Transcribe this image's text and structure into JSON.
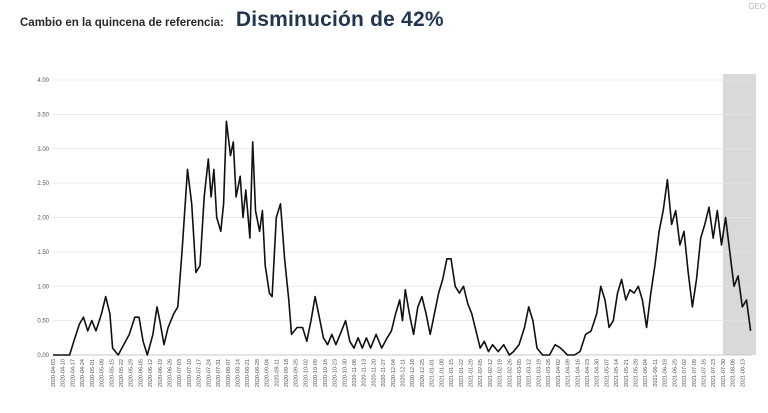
{
  "header": {
    "label": "Cambio en la quincena de referencia:",
    "headline": "Disminución de 42%"
  },
  "watermark": "GEO",
  "chart_data": {
    "type": "line",
    "title": "",
    "xlabel": "",
    "ylabel": "",
    "ylim": [
      0,
      4
    ],
    "yticks": [
      "0.00",
      "0.50",
      "1.00",
      "1.50",
      "2.00",
      "2.50",
      "3.00",
      "3.50",
      "4.00"
    ],
    "grid": true,
    "highlight_region": {
      "from": "2021-07-30",
      "to": "2021-08-20",
      "color": "#d2d2d2"
    },
    "x_tick_labels": [
      "2020-04-03",
      "2020-04-10",
      "2020-04-17",
      "2020-04-24",
      "2020-05-01",
      "2020-05-08",
      "2020-05-15",
      "2020-05-22",
      "2020-05-29",
      "2020-06-05",
      "2020-06-12",
      "2020-06-19",
      "2020-06-26",
      "2020-07-03",
      "2020-07-10",
      "2020-07-17",
      "2020-07-24",
      "2020-07-31",
      "2020-08-07",
      "2020-08-14",
      "2020-08-21",
      "2020-08-28",
      "2020-09-04",
      "2020-09-11",
      "2020-09-18",
      "2020-09-25",
      "2020-10-02",
      "2020-10-09",
      "2020-10-16",
      "2020-10-23",
      "2020-10-30",
      "2020-11-06",
      "2020-11-13",
      "2020-11-20",
      "2020-11-27",
      "2020-12-04",
      "2020-12-11",
      "2020-12-18",
      "2020-12-25",
      "2021-01-01",
      "2021-01-08",
      "2021-01-15",
      "2021-01-22",
      "2021-01-29",
      "2021-02-05",
      "2021-02-12",
      "2021-02-19",
      "2021-02-26",
      "2021-03-05",
      "2021-03-12",
      "2021-03-19",
      "2021-03-26",
      "2021-04-02",
      "2021-04-09",
      "2021-04-16",
      "2021-04-23",
      "2021-04-30",
      "2021-05-07",
      "2021-05-14",
      "2021-05-21",
      "2021-05-28",
      "2021-06-04",
      "2021-06-11",
      "2021-06-18",
      "2021-06-25",
      "2021-07-02",
      "2021-07-09",
      "2021-07-16",
      "2021-07-23",
      "2021-07-30",
      "2021-08-06",
      "2021-08-13"
    ],
    "series": [
      {
        "points": [
          [
            "2020-04-03",
            0.0
          ],
          [
            "2020-04-10",
            0.0
          ],
          [
            "2020-04-15",
            0.0
          ],
          [
            "2020-04-18",
            0.2
          ],
          [
            "2020-04-22",
            0.45
          ],
          [
            "2020-04-25",
            0.55
          ],
          [
            "2020-04-28",
            0.35
          ],
          [
            "2020-05-01",
            0.5
          ],
          [
            "2020-05-04",
            0.35
          ],
          [
            "2020-05-08",
            0.6
          ],
          [
            "2020-05-11",
            0.85
          ],
          [
            "2020-05-14",
            0.6
          ],
          [
            "2020-05-16",
            0.1
          ],
          [
            "2020-05-20",
            0.0
          ],
          [
            "2020-05-24",
            0.15
          ],
          [
            "2020-05-28",
            0.3
          ],
          [
            "2020-06-01",
            0.55
          ],
          [
            "2020-06-04",
            0.55
          ],
          [
            "2020-06-07",
            0.2
          ],
          [
            "2020-06-10",
            0.0
          ],
          [
            "2020-06-14",
            0.3
          ],
          [
            "2020-06-17",
            0.7
          ],
          [
            "2020-06-19",
            0.5
          ],
          [
            "2020-06-22",
            0.15
          ],
          [
            "2020-06-25",
            0.4
          ],
          [
            "2020-06-29",
            0.6
          ],
          [
            "2020-07-02",
            0.7
          ],
          [
            "2020-07-05",
            1.5
          ],
          [
            "2020-07-09",
            2.7
          ],
          [
            "2020-07-12",
            2.2
          ],
          [
            "2020-07-15",
            1.2
          ],
          [
            "2020-07-18",
            1.3
          ],
          [
            "2020-07-21",
            2.3
          ],
          [
            "2020-07-24",
            2.85
          ],
          [
            "2020-07-26",
            2.3
          ],
          [
            "2020-07-28",
            2.7
          ],
          [
            "2020-07-30",
            2.0
          ],
          [
            "2020-08-02",
            1.8
          ],
          [
            "2020-08-04",
            2.2
          ],
          [
            "2020-08-06",
            3.4
          ],
          [
            "2020-08-09",
            2.9
          ],
          [
            "2020-08-11",
            3.1
          ],
          [
            "2020-08-13",
            2.3
          ],
          [
            "2020-08-16",
            2.6
          ],
          [
            "2020-08-18",
            2.0
          ],
          [
            "2020-08-20",
            2.4
          ],
          [
            "2020-08-23",
            1.7
          ],
          [
            "2020-08-25",
            3.1
          ],
          [
            "2020-08-27",
            2.1
          ],
          [
            "2020-08-30",
            1.8
          ],
          [
            "2020-09-01",
            2.1
          ],
          [
            "2020-09-03",
            1.3
          ],
          [
            "2020-09-06",
            0.9
          ],
          [
            "2020-09-08",
            0.85
          ],
          [
            "2020-09-11",
            2.0
          ],
          [
            "2020-09-14",
            2.2
          ],
          [
            "2020-09-17",
            1.4
          ],
          [
            "2020-09-20",
            0.8
          ],
          [
            "2020-09-22",
            0.3
          ],
          [
            "2020-09-26",
            0.4
          ],
          [
            "2020-09-30",
            0.4
          ],
          [
            "2020-10-03",
            0.2
          ],
          [
            "2020-10-06",
            0.5
          ],
          [
            "2020-10-09",
            0.85
          ],
          [
            "2020-10-12",
            0.55
          ],
          [
            "2020-10-15",
            0.25
          ],
          [
            "2020-10-18",
            0.15
          ],
          [
            "2020-10-21",
            0.3
          ],
          [
            "2020-10-24",
            0.15
          ],
          [
            "2020-10-28",
            0.35
          ],
          [
            "2020-10-31",
            0.5
          ],
          [
            "2020-11-03",
            0.2
          ],
          [
            "2020-11-06",
            0.1
          ],
          [
            "2020-11-09",
            0.25
          ],
          [
            "2020-11-12",
            0.1
          ],
          [
            "2020-11-15",
            0.25
          ],
          [
            "2020-11-18",
            0.1
          ],
          [
            "2020-11-22",
            0.3
          ],
          [
            "2020-11-26",
            0.1
          ],
          [
            "2020-11-30",
            0.25
          ],
          [
            "2020-12-03",
            0.35
          ],
          [
            "2020-12-06",
            0.6
          ],
          [
            "2020-12-09",
            0.8
          ],
          [
            "2020-12-11",
            0.5
          ],
          [
            "2020-12-13",
            0.95
          ],
          [
            "2020-12-16",
            0.6
          ],
          [
            "2020-12-19",
            0.3
          ],
          [
            "2020-12-22",
            0.7
          ],
          [
            "2020-12-25",
            0.85
          ],
          [
            "2020-12-28",
            0.6
          ],
          [
            "2020-12-31",
            0.3
          ],
          [
            "2021-01-03",
            0.6
          ],
          [
            "2021-01-06",
            0.9
          ],
          [
            "2021-01-09",
            1.1
          ],
          [
            "2021-01-12",
            1.4
          ],
          [
            "2021-01-15",
            1.4
          ],
          [
            "2021-01-18",
            1.0
          ],
          [
            "2021-01-21",
            0.9
          ],
          [
            "2021-01-24",
            1.0
          ],
          [
            "2021-01-27",
            0.75
          ],
          [
            "2021-01-30",
            0.6
          ],
          [
            "2021-02-02",
            0.35
          ],
          [
            "2021-02-05",
            0.1
          ],
          [
            "2021-02-08",
            0.2
          ],
          [
            "2021-02-11",
            0.05
          ],
          [
            "2021-02-14",
            0.15
          ],
          [
            "2021-02-18",
            0.05
          ],
          [
            "2021-02-22",
            0.15
          ],
          [
            "2021-02-26",
            0.0
          ],
          [
            "2021-03-01",
            0.05
          ],
          [
            "2021-03-05",
            0.15
          ],
          [
            "2021-03-09",
            0.4
          ],
          [
            "2021-03-12",
            0.7
          ],
          [
            "2021-03-15",
            0.5
          ],
          [
            "2021-03-18",
            0.1
          ],
          [
            "2021-03-22",
            0.0
          ],
          [
            "2021-03-27",
            0.0
          ],
          [
            "2021-03-31",
            0.15
          ],
          [
            "2021-04-04",
            0.1
          ],
          [
            "2021-04-09",
            0.0
          ],
          [
            "2021-04-14",
            0.0
          ],
          [
            "2021-04-18",
            0.05
          ],
          [
            "2021-04-22",
            0.3
          ],
          [
            "2021-04-26",
            0.35
          ],
          [
            "2021-04-30",
            0.6
          ],
          [
            "2021-05-03",
            1.0
          ],
          [
            "2021-05-06",
            0.8
          ],
          [
            "2021-05-09",
            0.4
          ],
          [
            "2021-05-12",
            0.5
          ],
          [
            "2021-05-15",
            0.9
          ],
          [
            "2021-05-18",
            1.1
          ],
          [
            "2021-05-21",
            0.8
          ],
          [
            "2021-05-24",
            0.95
          ],
          [
            "2021-05-27",
            0.9
          ],
          [
            "2021-05-30",
            1.0
          ],
          [
            "2021-06-02",
            0.8
          ],
          [
            "2021-06-05",
            0.4
          ],
          [
            "2021-06-08",
            0.9
          ],
          [
            "2021-06-11",
            1.3
          ],
          [
            "2021-06-14",
            1.8
          ],
          [
            "2021-06-17",
            2.1
          ],
          [
            "2021-06-20",
            2.55
          ],
          [
            "2021-06-23",
            1.9
          ],
          [
            "2021-06-26",
            2.1
          ],
          [
            "2021-06-29",
            1.6
          ],
          [
            "2021-07-02",
            1.8
          ],
          [
            "2021-07-05",
            1.2
          ],
          [
            "2021-07-08",
            0.7
          ],
          [
            "2021-07-11",
            1.1
          ],
          [
            "2021-07-14",
            1.7
          ],
          [
            "2021-07-17",
            1.9
          ],
          [
            "2021-07-20",
            2.15
          ],
          [
            "2021-07-23",
            1.7
          ],
          [
            "2021-07-26",
            2.1
          ],
          [
            "2021-07-29",
            1.6
          ],
          [
            "2021-08-01",
            2.0
          ],
          [
            "2021-08-04",
            1.5
          ],
          [
            "2021-08-07",
            1.0
          ],
          [
            "2021-08-10",
            1.15
          ],
          [
            "2021-08-13",
            0.7
          ],
          [
            "2021-08-16",
            0.8
          ],
          [
            "2021-08-19",
            0.35
          ]
        ],
        "color": "#111111"
      }
    ]
  }
}
